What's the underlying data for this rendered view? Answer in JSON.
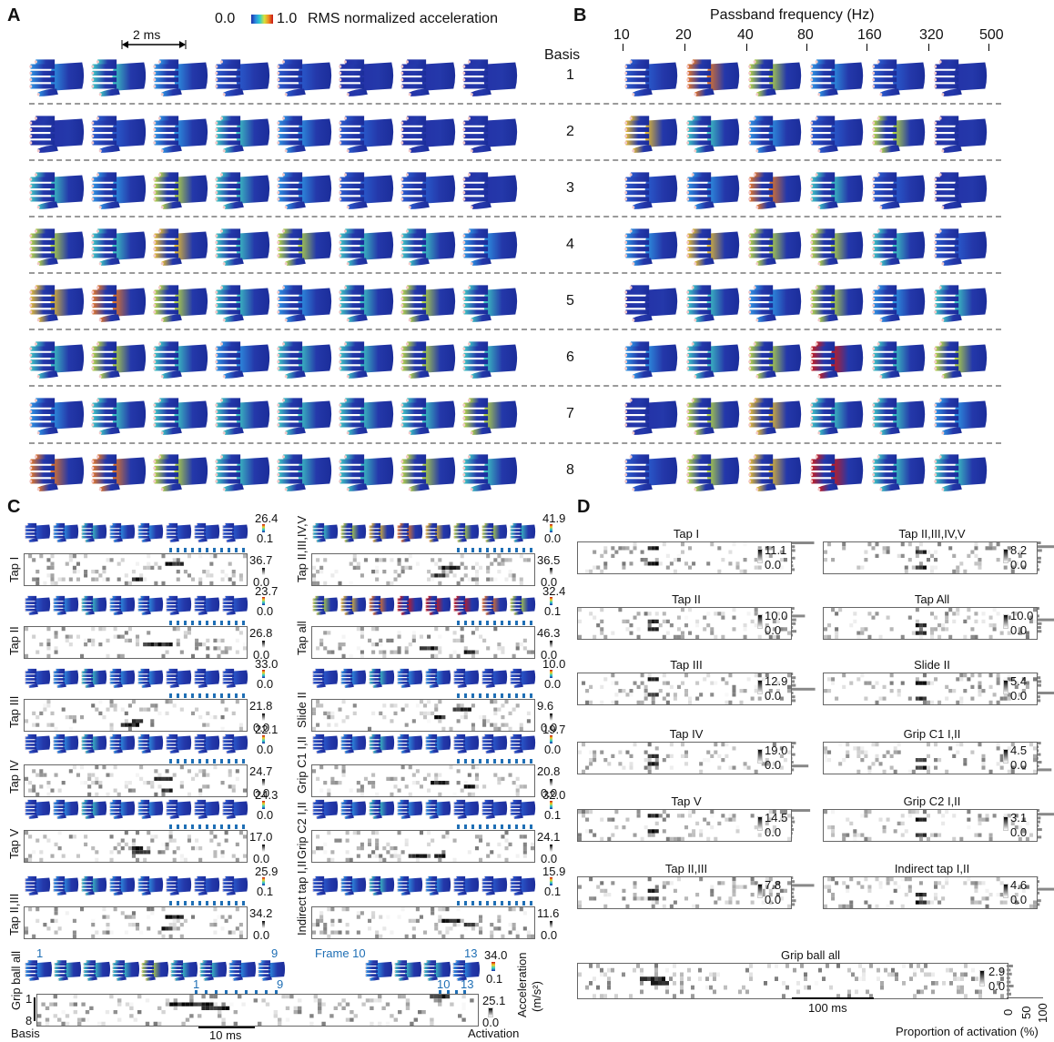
{
  "panelA": {
    "letter": "A",
    "scale_left": "0.0",
    "scale_right": "1.0",
    "scale_label": "RMS normalized acceleration",
    "time_bar": "2 ms"
  },
  "panelB": {
    "letter": "B",
    "title": "Passband frequency (Hz)",
    "ticks": [
      "10",
      "20",
      "40",
      "80",
      "160",
      "320",
      "500"
    ]
  },
  "basis": {
    "header": "Basis",
    "numbers": [
      "1",
      "2",
      "3",
      "4",
      "5",
      "6",
      "7",
      "8"
    ]
  },
  "panelC": {
    "letter": "C",
    "items": [
      {
        "label": "Tap I",
        "top": "26.4",
        "mid": "0.1",
        "hm": "36.7",
        "bot": "0.0"
      },
      {
        "label": "Tap II,III,IV,V",
        "top": "41.9",
        "mid": "0.0",
        "hm": "36.5",
        "bot": "0.0"
      },
      {
        "label": "Tap II",
        "top": "23.7",
        "mid": "0.0",
        "hm": "26.8",
        "bot": "0.0"
      },
      {
        "label": "Tap all",
        "top": "32.4",
        "mid": "0.1",
        "hm": "46.3",
        "bot": "0.0"
      },
      {
        "label": "Tap III",
        "top": "33.0",
        "mid": "0.0",
        "hm": "21.8",
        "bot": "0.0"
      },
      {
        "label": "Slide II",
        "top": "10.0",
        "mid": "0.0",
        "hm": "9.6",
        "bot": "0.0"
      },
      {
        "label": "Tap IV",
        "top": "22.1",
        "mid": "0.0",
        "hm": "24.7",
        "bot": "0.0"
      },
      {
        "label": "Grip C1 I,II",
        "top": "19.7",
        "mid": "0.0",
        "hm": "20.8",
        "bot": "0.0"
      },
      {
        "label": "Tap V",
        "top": "24.3",
        "mid": "0.0",
        "hm": "17.0",
        "bot": "0.0"
      },
      {
        "label": "Grip C2 I,II",
        "top": "32.0",
        "mid": "0.1",
        "hm": "24.1",
        "bot": "0.0"
      },
      {
        "label": "Tap II,III",
        "top": "25.9",
        "mid": "0.1",
        "hm": "34.2",
        "bot": "0.0"
      },
      {
        "label": "Indirect tap I,II",
        "top": "15.9",
        "mid": "0.1",
        "hm": "11.6",
        "bot": "0.0"
      }
    ],
    "grip": {
      "label": "Grip ball all",
      "frame_1": "1",
      "frame_9": "9",
      "frame_10": "Frame 10",
      "frame_13": "13",
      "tick_1": "1",
      "tick_9": "9",
      "tick_10": "10",
      "tick_13": "13",
      "scale_top": "34.0",
      "scale_mid": "0.1",
      "accel_label": "Acceleration",
      "accel_unit": "(m/s²)",
      "hm_top": "25.1",
      "hm_bot": "0.0",
      "activation": "Activation",
      "basis_1": "1",
      "basis_8": "8",
      "basis_label": "Basis",
      "time_bar": "10 ms"
    }
  },
  "panelD": {
    "letter": "D",
    "items": [
      {
        "title": "Tap I",
        "max": "11.1",
        "min": "0.0"
      },
      {
        "title": "Tap II,III,IV,V",
        "max": "8.2",
        "min": "0.0"
      },
      {
        "title": "Tap II",
        "max": "10.0",
        "min": "0.0"
      },
      {
        "title": "Tap All",
        "max": "10.0",
        "min": "0.0"
      },
      {
        "title": "Tap III",
        "max": "12.9",
        "min": "0.0"
      },
      {
        "title": "Slide II",
        "max": "5.4",
        "min": "0.0"
      },
      {
        "title": "Tap IV",
        "max": "19.0",
        "min": "0.0"
      },
      {
        "title": "Grip C1 I,II",
        "max": "4.5",
        "min": "0.0"
      },
      {
        "title": "Tap V",
        "max": "14.5",
        "min": "0.0"
      },
      {
        "title": "Grip C2 I,II",
        "max": "3.1",
        "min": "0.0"
      },
      {
        "title": "Tap II,III",
        "max": "7.8",
        "min": "0.0"
      },
      {
        "title": "Indirect tap I,II",
        "max": "4.6",
        "min": "0.0"
      }
    ],
    "grip": {
      "title": "Grip ball all",
      "max": "2.9",
      "min": "0.0",
      "time_bar": "100 ms"
    },
    "axis_ticks": [
      "0",
      "50",
      "100"
    ],
    "axis_label": "Proportion of activation (%)"
  }
}
